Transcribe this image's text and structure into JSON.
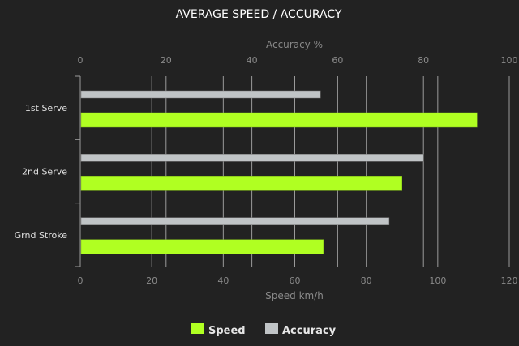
{
  "chart_data": {
    "type": "bar",
    "orientation": "horizontal",
    "title": "AVERAGE SPEED / ACCURACY",
    "categories": [
      "1st Serve",
      "2nd Serve",
      "Grnd Stroke"
    ],
    "series": [
      {
        "name": "Speed",
        "axis": "bottom",
        "values": [
          111,
          90,
          68
        ],
        "color": "#b0ff22"
      },
      {
        "name": "Accuracy",
        "axis": "top",
        "values": [
          56,
          80,
          72
        ],
        "color": "#c0c4c6"
      }
    ],
    "x_bottom": {
      "label": "Speed km/h",
      "range": [
        0,
        120
      ],
      "ticks": [
        0,
        20,
        40,
        60,
        80,
        100,
        120
      ]
    },
    "x_top": {
      "label": "Accuracy %",
      "range": [
        0,
        100
      ],
      "ticks": [
        0,
        20,
        40,
        60,
        80,
        100
      ]
    },
    "grid": true,
    "legend_position": "bottom"
  }
}
